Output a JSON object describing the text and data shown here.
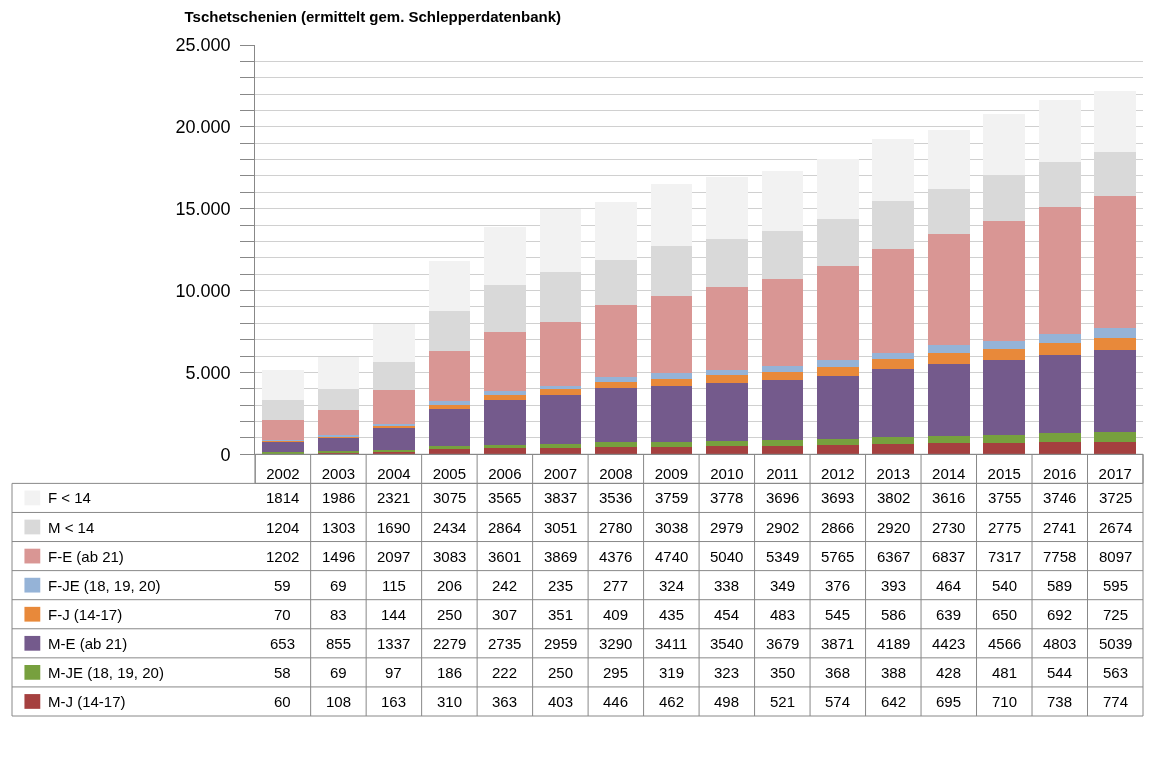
{
  "chart_data": {
    "type": "bar",
    "title": "Tschetschenien (ermittelt gem. Schlepperdatenbank)",
    "stacked": true,
    "data_labels": true,
    "legend": "left",
    "grid": "y",
    "categories": [
      "2002",
      "2003",
      "2004",
      "2005",
      "2006",
      "2007",
      "2008",
      "2009",
      "2010",
      "2011",
      "2012",
      "2013",
      "2014",
      "2015",
      "2016",
      "2017"
    ],
    "ylim": [
      0,
      25000
    ],
    "yticks": [
      0,
      {
        "value": 1000,
        "label": null
      },
      {
        "value": 2000,
        "label": null
      },
      {
        "value": 3000,
        "label": null
      },
      {
        "value": 4000,
        "label": null
      },
      {
        "value": 5000,
        "label": "5.000"
      },
      {
        "value": 6000,
        "label": null
      },
      {
        "value": 7000,
        "label": null
      },
      {
        "value": 8000,
        "label": null
      },
      {
        "value": 9000,
        "label": null
      },
      {
        "value": 10000,
        "label": "10.000"
      },
      {
        "value": 11000,
        "label": null
      },
      {
        "value": 12000,
        "label": null
      },
      {
        "value": 13000,
        "label": null
      },
      {
        "value": 14000,
        "label": null
      },
      {
        "value": 15000,
        "label": "15.000"
      },
      {
        "value": 16000,
        "label": null
      },
      {
        "value": 17000,
        "label": null
      },
      {
        "value": 18000,
        "label": null
      },
      {
        "value": 19000,
        "label": null
      },
      {
        "value": 20000,
        "label": "20.000"
      },
      {
        "value": 21000,
        "label": null
      },
      {
        "value": 22000,
        "label": null
      },
      {
        "value": 23000,
        "label": null
      },
      {
        "value": 24000,
        "label": null
      },
      {
        "value": 25000,
        "label": "25.000"
      }
    ],
    "series": [
      {
        "name": "M-J (14-17)",
        "color": "#a5403f",
        "values": [
          60,
          108,
          163,
          310,
          363,
          403,
          446,
          462,
          498,
          521,
          574,
          642,
          695,
          710,
          738,
          774
        ]
      },
      {
        "name": "M-JE (18, 19, 20)",
        "color": "#77a03e",
        "values": [
          58,
          69,
          97,
          186,
          222,
          250,
          295,
          319,
          323,
          350,
          368,
          388,
          428,
          481,
          544,
          563
        ]
      },
      {
        "name": "M-E (ab 21)",
        "color": "#745a8c",
        "values": [
          653,
          855,
          1337,
          2279,
          2735,
          2959,
          3290,
          3411,
          3540,
          3679,
          3871,
          4189,
          4423,
          4566,
          4803,
          5039
        ]
      },
      {
        "name": "F-J (14-17)",
        "color": "#e8893a",
        "values": [
          70,
          83,
          144,
          250,
          307,
          351,
          409,
          435,
          454,
          483,
          545,
          586,
          639,
          650,
          692,
          725
        ]
      },
      {
        "name": "F-JE (18, 19, 20)",
        "color": "#95b3d7",
        "values": [
          59,
          69,
          115,
          206,
          242,
          235,
          277,
          324,
          338,
          349,
          376,
          393,
          464,
          540,
          589,
          595
        ]
      },
      {
        "name": "F-E (ab 21)",
        "color": "#d99694",
        "values": [
          1202,
          1496,
          2097,
          3083,
          3601,
          3869,
          4376,
          4740,
          5040,
          5349,
          5765,
          6367,
          6837,
          7317,
          7758,
          8097
        ]
      },
      {
        "name": "M < 14",
        "color": "#d9d9d9",
        "values": [
          1204,
          1303,
          1690,
          2434,
          2864,
          3051,
          2780,
          3038,
          2979,
          2902,
          2866,
          2920,
          2730,
          2775,
          2741,
          2674
        ]
      },
      {
        "name": "F < 14",
        "color": "#f2f2f2",
        "values": [
          1814,
          1986,
          2321,
          3075,
          3565,
          3837,
          3536,
          3759,
          3778,
          3696,
          3693,
          3802,
          3616,
          3755,
          3746,
          3725
        ]
      }
    ]
  }
}
